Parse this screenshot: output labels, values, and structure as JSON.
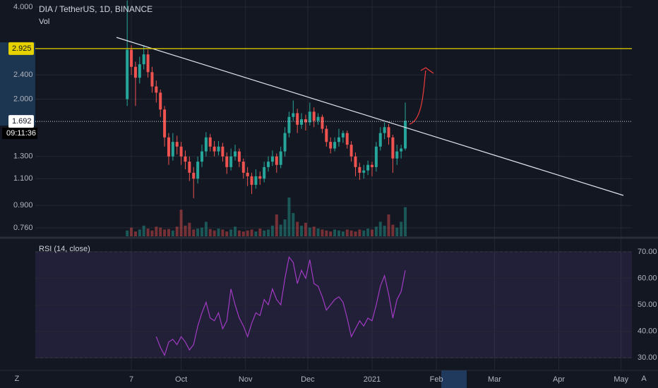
{
  "chart_data": {
    "type": "candlestick",
    "title": "DIA / TetherUS, 1D, BINANCE",
    "volume_label": "Vol",
    "x": [
      4,
      6,
      8,
      10,
      12,
      14,
      16,
      18,
      20,
      22,
      24,
      26,
      28,
      30,
      32,
      34,
      36,
      38,
      40,
      42,
      44,
      46,
      48,
      50,
      52,
      54,
      56,
      58,
      60,
      62,
      64,
      66,
      68,
      70,
      72,
      74,
      76,
      78,
      80,
      82,
      84,
      86,
      88,
      90,
      92,
      94,
      96,
      98,
      100,
      102,
      104,
      106,
      108,
      110,
      112,
      114,
      116,
      118,
      120,
      122,
      124,
      126,
      128,
      130,
      132,
      134,
      136,
      138
    ],
    "open": [
      2.0,
      2.9,
      2.55,
      2.35,
      2.6,
      2.8,
      2.45,
      2.2,
      2.1,
      1.85,
      1.5,
      1.3,
      1.45,
      1.4,
      1.3,
      1.25,
      1.15,
      1.1,
      1.25,
      1.35,
      1.5,
      1.4,
      1.35,
      1.4,
      1.3,
      1.2,
      1.3,
      1.35,
      1.25,
      1.15,
      1.12,
      1.05,
      1.12,
      1.1,
      1.2,
      1.25,
      1.3,
      1.22,
      1.35,
      1.55,
      1.75,
      1.8,
      1.65,
      1.72,
      1.68,
      1.82,
      1.7,
      1.75,
      1.6,
      1.45,
      1.38,
      1.45,
      1.5,
      1.55,
      1.42,
      1.3,
      1.2,
      1.15,
      1.17,
      1.22,
      1.2,
      1.4,
      1.55,
      1.62,
      1.5,
      1.28,
      1.35,
      1.38
    ],
    "high": [
      4.2,
      3.0,
      2.65,
      2.75,
      3.0,
      2.9,
      2.55,
      2.3,
      2.15,
      1.9,
      1.55,
      1.55,
      1.52,
      1.45,
      1.36,
      1.3,
      1.2,
      1.3,
      1.42,
      1.56,
      1.54,
      1.46,
      1.46,
      1.44,
      1.34,
      1.38,
      1.42,
      1.38,
      1.28,
      1.2,
      1.15,
      1.18,
      1.16,
      1.25,
      1.3,
      1.36,
      1.33,
      1.4,
      1.62,
      1.82,
      1.98,
      1.86,
      1.8,
      1.78,
      1.95,
      1.88,
      1.8,
      1.78,
      1.64,
      1.5,
      1.5,
      1.6,
      1.58,
      1.58,
      1.46,
      1.34,
      1.24,
      1.22,
      1.26,
      1.25,
      1.45,
      1.62,
      1.68,
      1.66,
      1.53,
      1.42,
      1.42,
      1.95
    ],
    "low": [
      1.9,
      2.4,
      1.9,
      2.25,
      2.5,
      2.35,
      2.1,
      1.95,
      1.75,
      1.4,
      1.22,
      1.26,
      1.32,
      1.22,
      1.18,
      1.08,
      0.95,
      1.06,
      1.2,
      1.3,
      1.35,
      1.3,
      1.31,
      1.25,
      1.14,
      1.17,
      1.26,
      1.2,
      1.1,
      1.04,
      0.98,
      1.02,
      1.05,
      1.07,
      1.16,
      1.21,
      1.15,
      1.19,
      1.3,
      1.5,
      1.7,
      1.55,
      1.6,
      1.58,
      1.64,
      1.62,
      1.65,
      1.55,
      1.4,
      1.33,
      1.35,
      1.4,
      1.44,
      1.38,
      1.25,
      1.12,
      1.09,
      1.1,
      1.13,
      1.12,
      1.16,
      1.36,
      1.48,
      1.42,
      1.15,
      1.22,
      1.28,
      1.36
    ],
    "close": [
      2.9,
      2.55,
      2.35,
      2.6,
      2.8,
      2.45,
      2.2,
      2.1,
      1.85,
      1.5,
      1.3,
      1.45,
      1.4,
      1.3,
      1.25,
      1.15,
      1.1,
      1.25,
      1.35,
      1.5,
      1.4,
      1.35,
      1.4,
      1.3,
      1.2,
      1.3,
      1.35,
      1.25,
      1.15,
      1.12,
      1.05,
      1.12,
      1.1,
      1.2,
      1.25,
      1.3,
      1.22,
      1.35,
      1.55,
      1.75,
      1.8,
      1.65,
      1.72,
      1.68,
      1.82,
      1.7,
      1.75,
      1.6,
      1.45,
      1.38,
      1.45,
      1.5,
      1.55,
      1.42,
      1.3,
      1.2,
      1.15,
      1.17,
      1.22,
      1.2,
      1.4,
      1.55,
      1.62,
      1.5,
      1.28,
      1.35,
      1.38,
      1.7
    ],
    "volume": [
      12,
      18,
      10,
      14,
      22,
      16,
      12,
      20,
      18,
      14,
      15,
      12,
      20,
      55,
      22,
      28,
      14,
      16,
      18,
      30,
      15,
      12,
      16,
      14,
      10,
      14,
      20,
      12,
      10,
      12,
      14,
      10,
      16,
      12,
      14,
      22,
      45,
      24,
      35,
      80,
      48,
      30,
      22,
      28,
      18,
      20,
      16,
      14,
      12,
      10,
      14,
      12,
      10,
      14,
      12,
      10,
      14,
      12,
      16,
      14,
      20,
      30,
      22,
      45,
      24,
      18,
      30,
      60
    ],
    "up_color": "#26a69a",
    "down_color": "#ef5350",
    "log_scale": true,
    "ylim": [
      0.713,
      4.215
    ],
    "yticks": [
      {
        "value": 4,
        "label": "4.000"
      },
      {
        "value": 2.4,
        "label": "2.400"
      },
      {
        "value": 2,
        "label": "2.000"
      },
      {
        "value": 1.3,
        "label": "1.300"
      },
      {
        "value": 1.1,
        "label": "1.100"
      },
      {
        "value": 0.9,
        "label": "0.900"
      },
      {
        "value": 0.76,
        "label": "0.760"
      }
    ],
    "xlim": [
      -57.3,
      247.2
    ],
    "xticks": [
      {
        "value": 6,
        "label": "7"
      },
      {
        "value": 30,
        "label": "Oct"
      },
      {
        "value": 61,
        "label": "Nov"
      },
      {
        "value": 91,
        "label": "Dec"
      },
      {
        "value": 122,
        "label": "2021"
      },
      {
        "value": 153,
        "label": "Feb"
      },
      {
        "value": 181,
        "label": "Mar"
      },
      {
        "value": 212,
        "label": "Apr"
      },
      {
        "value": 242,
        "label": "May"
      }
    ],
    "hline": {
      "value": 2.925,
      "label": "2.925",
      "color": "#e6d200"
    },
    "last_price": {
      "value": 1.692,
      "label": "1.692"
    },
    "countdown": "09:11:36",
    "rsi": {
      "title": "RSI (14, close)",
      "color": "#a23bc4",
      "values": [
        null,
        null,
        null,
        null,
        null,
        null,
        null,
        38,
        34,
        31,
        36,
        37,
        35,
        38,
        36,
        33,
        35,
        42,
        47,
        51,
        45,
        44,
        47,
        41,
        44,
        56,
        50,
        45,
        42,
        38,
        43,
        47,
        46,
        52,
        50,
        56,
        52,
        50,
        60,
        68,
        66,
        58,
        63,
        60,
        67,
        58,
        57,
        53,
        48,
        50,
        52,
        53,
        51,
        45,
        38,
        41,
        44,
        42,
        45,
        44,
        50,
        57,
        61,
        54,
        45,
        52,
        55,
        63
      ],
      "ylim": [
        25.3,
        74.5
      ],
      "yticks": [
        {
          "value": 30,
          "label": "30.00"
        },
        {
          "value": 40,
          "label": "40.00"
        },
        {
          "value": 50,
          "label": "50.00"
        },
        {
          "value": 60,
          "label": "60.00"
        },
        {
          "value": 70,
          "label": "70.00"
        }
      ],
      "band": [
        30,
        70
      ]
    }
  },
  "toolbar": {
    "left": "Z",
    "right": "A"
  }
}
